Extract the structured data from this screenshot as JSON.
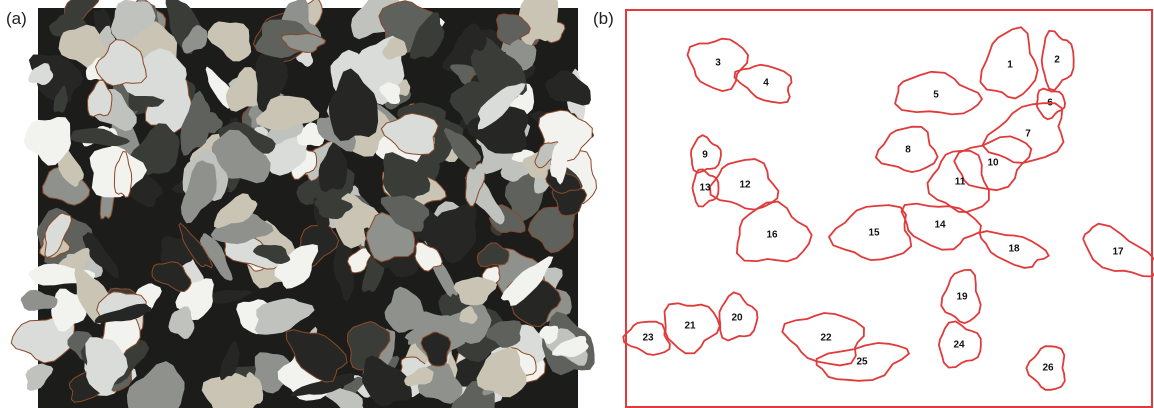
{
  "panels": [
    {
      "label": "(a)"
    },
    {
      "label": "(b)",
      "grains": [
        1,
        2,
        3,
        4,
        5,
        6,
        7,
        8,
        9,
        10,
        11,
        12,
        13,
        14,
        15,
        16,
        17,
        18,
        19,
        20,
        21,
        22,
        23,
        24,
        25,
        26
      ]
    }
  ]
}
